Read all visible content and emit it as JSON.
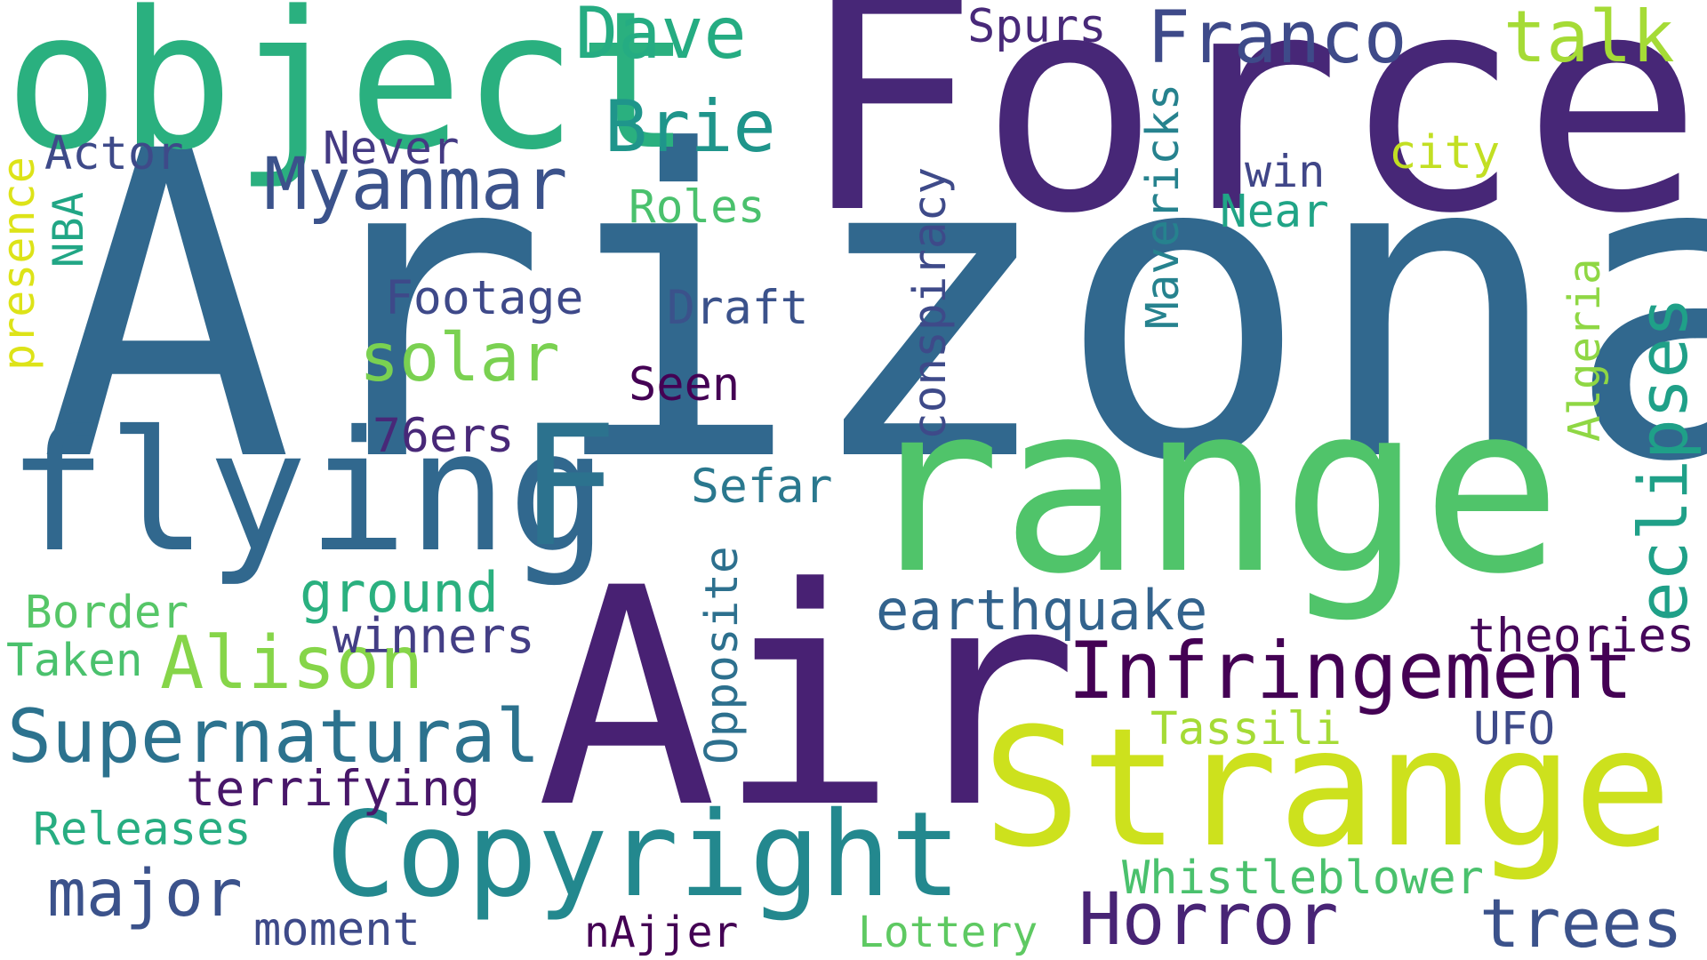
{
  "words": [
    {
      "text": "Arizona",
      "color": "#31688e",
      "vertical": false
    },
    {
      "text": "Force",
      "color": "#472777",
      "vertical": false
    },
    {
      "text": "Air",
      "color": "#482173",
      "vertical": false
    },
    {
      "text": "range",
      "color": "#50c46a",
      "vertical": false
    },
    {
      "text": "object",
      "color": "#2ab07f",
      "vertical": false
    },
    {
      "text": "flying",
      "color": "#31688e",
      "vertical": false
    },
    {
      "text": "Strange",
      "color": "#cde11d",
      "vertical": false
    },
    {
      "text": "Copyright",
      "color": "#23888e",
      "vertical": false
    },
    {
      "text": "Infringement",
      "color": "#440154",
      "vertical": false
    },
    {
      "text": "Supernatural",
      "color": "#2c728e",
      "vertical": false
    },
    {
      "text": "Myanmar",
      "color": "#3b528b",
      "vertical": false
    },
    {
      "text": "Alison",
      "color": "#86d549",
      "vertical": false
    },
    {
      "text": "Horror",
      "color": "#482475",
      "vertical": false
    },
    {
      "text": "Franco",
      "color": "#3e4a89",
      "vertical": false
    },
    {
      "text": "Dave",
      "color": "#25ac82",
      "vertical": false
    },
    {
      "text": "talk",
      "color": "#a5db36",
      "vertical": false
    },
    {
      "text": "Brie",
      "color": "#1f958b",
      "vertical": false
    },
    {
      "text": "major",
      "color": "#3b528b",
      "vertical": false
    },
    {
      "text": "trees",
      "color": "#3b528b",
      "vertical": false
    },
    {
      "text": "solar",
      "color": "#7ad151",
      "vertical": false
    },
    {
      "text": "F",
      "color": "#2c728e",
      "vertical": false
    },
    {
      "text": "eclipses",
      "color": "#1fa088",
      "vertical": true
    },
    {
      "text": "conspiracy",
      "color": "#3e4a89",
      "vertical": true
    },
    {
      "text": "Mavericks",
      "color": "#26828e",
      "vertical": true
    },
    {
      "text": "Opposite",
      "color": "#2d708e",
      "vertical": true
    },
    {
      "text": "Algeria",
      "color": "#8fd744",
      "vertical": true
    },
    {
      "text": "presence",
      "color": "#dde318",
      "vertical": true
    },
    {
      "text": "NBA",
      "color": "#21a685",
      "vertical": true
    },
    {
      "text": "earthquake",
      "color": "#33638d",
      "vertical": false
    },
    {
      "text": "ground",
      "color": "#2ab07f",
      "vertical": false
    },
    {
      "text": "winners",
      "color": "#433e85",
      "vertical": false
    },
    {
      "text": "theories",
      "color": "#46075a",
      "vertical": false
    },
    {
      "text": "terrifying",
      "color": "#481769",
      "vertical": false
    },
    {
      "text": "Whistleblower",
      "color": "#4ac16d",
      "vertical": false
    },
    {
      "text": "Footage",
      "color": "#3e4989",
      "vertical": false
    },
    {
      "text": "Draft",
      "color": "#3b528b",
      "vertical": false
    },
    {
      "text": "Seen",
      "color": "#440154",
      "vertical": false
    },
    {
      "text": "76ers",
      "color": "#482878",
      "vertical": false
    },
    {
      "text": "Sefar",
      "color": "#2a788e",
      "vertical": false
    },
    {
      "text": "Roles",
      "color": "#4ac16d",
      "vertical": false
    },
    {
      "text": "Never",
      "color": "#443a83",
      "vertical": false
    },
    {
      "text": "Actor",
      "color": "#3e4a89",
      "vertical": false
    },
    {
      "text": "Spurs",
      "color": "#482979",
      "vertical": false
    },
    {
      "text": "city",
      "color": "#c2df23",
      "vertical": false
    },
    {
      "text": "win",
      "color": "#404688",
      "vertical": false
    },
    {
      "text": "Near",
      "color": "#20a486",
      "vertical": false
    },
    {
      "text": "Border",
      "color": "#56c667",
      "vertical": false
    },
    {
      "text": "Taken",
      "color": "#4ac16d",
      "vertical": false
    },
    {
      "text": "Tassili",
      "color": "#a5db36",
      "vertical": false
    },
    {
      "text": "UFO",
      "color": "#3e4a89",
      "vertical": false
    },
    {
      "text": "Releases",
      "color": "#27ad81",
      "vertical": false
    },
    {
      "text": "moment",
      "color": "#3e4a89",
      "vertical": false
    },
    {
      "text": "nAjjer",
      "color": "#440154",
      "vertical": false
    },
    {
      "text": "Lottery",
      "color": "#5ec962",
      "vertical": false
    }
  ]
}
